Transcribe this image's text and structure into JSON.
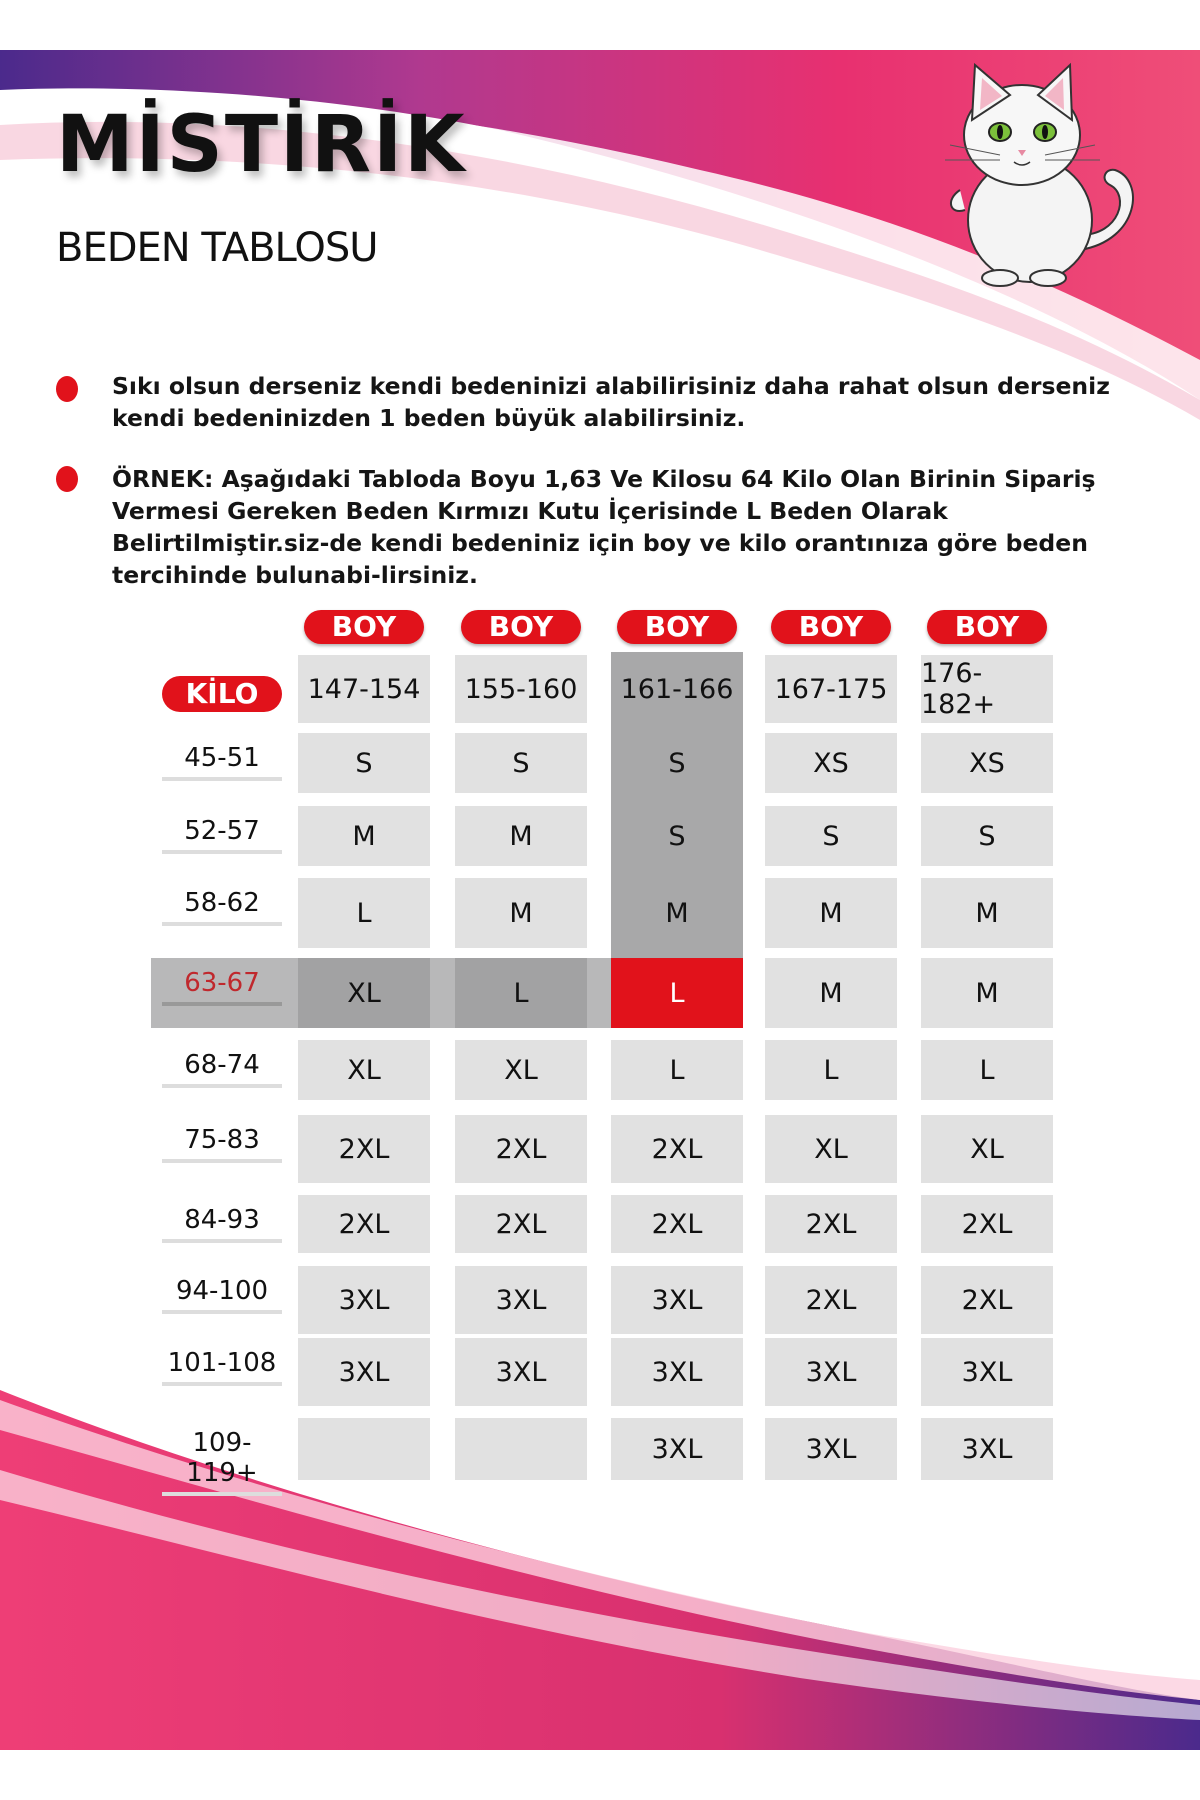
{
  "brand": "MİSTİRİK",
  "subtitle": "BEDEN TABLOSU",
  "notes": [
    "Sıkı olsun derseniz kendi bedeninizi alabilirisiniz daha rahat olsun derseniz kendi bedeninizden 1 beden büyük alabilirsiniz.",
    "ÖRNEK: Aşağıdaki Tabloda Boyu 1,63 Ve Kilosu 64 Kilo Olan Birinin Sipariş Vermesi Gereken Beden Kırmızı Kutu İçerisinde L Beden Olarak Belirtilmiştir.siz-de kendi bedeniniz için boy ve kilo orantınıza göre beden tercihinde bulunabi-lirsiniz."
  ],
  "table": {
    "boy_label": "BOY",
    "kilo_label": "KİLO",
    "heights": [
      "147-154",
      "155-160",
      "161-166",
      "167-175",
      "176-182+"
    ],
    "rows": [
      {
        "kilo": "45-51",
        "sizes": [
          "S",
          "S",
          "S",
          "XS",
          "XS"
        ]
      },
      {
        "kilo": "52-57",
        "sizes": [
          "M",
          "M",
          "S",
          "S",
          "S"
        ]
      },
      {
        "kilo": "58-62",
        "sizes": [
          "L",
          "M",
          "M",
          "M",
          "M"
        ]
      },
      {
        "kilo": "63-67",
        "sizes": [
          "XL",
          "L",
          "L",
          "M",
          "M"
        ]
      },
      {
        "kilo": "68-74",
        "sizes": [
          "XL",
          "XL",
          "L",
          "L",
          "L"
        ]
      },
      {
        "kilo": "75-83",
        "sizes": [
          "2XL",
          "2XL",
          "2XL",
          "XL",
          "XL"
        ]
      },
      {
        "kilo": "84-93",
        "sizes": [
          "2XL",
          "2XL",
          "2XL",
          "2XL",
          "2XL"
        ]
      },
      {
        "kilo": "94-100",
        "sizes": [
          "3XL",
          "3XL",
          "3XL",
          "2XL",
          "2XL"
        ]
      },
      {
        "kilo": "101-108",
        "sizes": [
          "3XL",
          "3XL",
          "3XL",
          "3XL",
          "3XL"
        ]
      },
      {
        "kilo": "109-119+",
        "sizes": [
          "",
          "",
          "3XL",
          "3XL",
          "3XL"
        ]
      }
    ],
    "highlight": {
      "row": "63-67",
      "column": "161-166",
      "size": "L"
    }
  },
  "colors": {
    "accent": "#e1121b",
    "pink": "#e8336f",
    "purple": "#5a2d91",
    "cell": "#e1e1e1",
    "highlight": "#a8a8a9"
  }
}
